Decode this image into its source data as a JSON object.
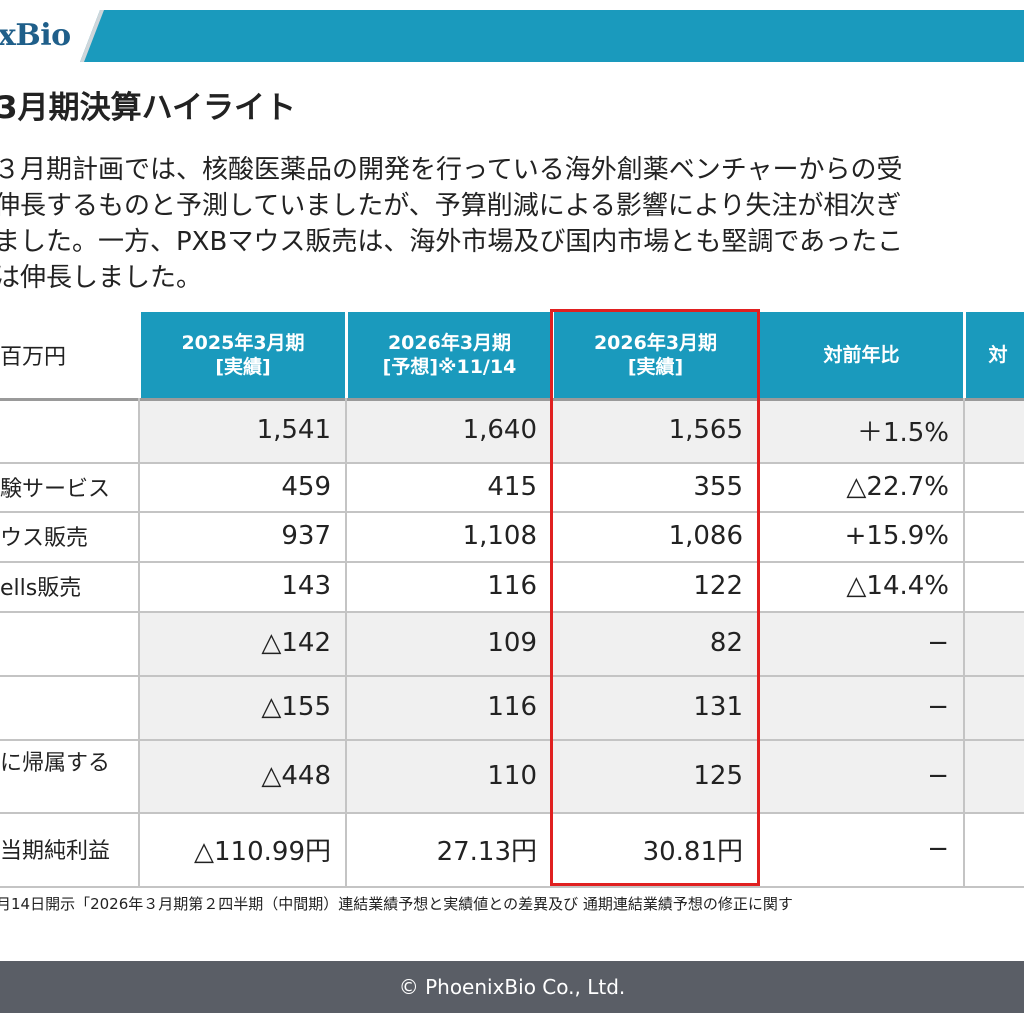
{
  "header": {
    "logo_text": "xBio",
    "accent_color": "#1a9abd"
  },
  "page_title": "3月期決算ハイライト",
  "intro_lines": [
    "３月期計画では、核酸医薬品の開発を行っている海外創薬ベンチャーからの受",
    "伸長するものと予測していましたが、予算削減による影響により失注が相次ぎ",
    "ました。一方、PXBマウス販売は、海外市場及び国内市場とも堅調であったこ",
    "は伸長しました。"
  ],
  "table": {
    "unit_label": "百万円",
    "columns": [
      {
        "line1": "2025年3月期",
        "line2": "[実績]"
      },
      {
        "line1": "2026年3月期",
        "line2": "[予想]※11/14"
      },
      {
        "line1": "2026年3月期",
        "line2": "[実績]"
      },
      {
        "line1": "対前年比",
        "line2": ""
      },
      {
        "line1": "対",
        "line2": ""
      }
    ],
    "highlight_color": "#e02020",
    "rows": [
      {
        "label": "",
        "values": [
          "1,541",
          "1,640",
          "1,565",
          "＋1.5%",
          ""
        ],
        "shaded": true
      },
      {
        "label": "験サービス",
        "values": [
          "459",
          "415",
          "355",
          "△22.7%",
          ""
        ],
        "shaded": false
      },
      {
        "label": "ウス販売",
        "values": [
          "937",
          "1,108",
          "1,086",
          "+15.9%",
          ""
        ],
        "shaded": false
      },
      {
        "label": "ells販売",
        "values": [
          "143",
          "116",
          "122",
          "△14.4%",
          ""
        ],
        "shaded": false
      },
      {
        "label": "",
        "values": [
          "△142",
          "109",
          "82",
          "−",
          ""
        ],
        "shaded": true
      },
      {
        "label": "",
        "values": [
          "△155",
          "116",
          "131",
          "−",
          ""
        ],
        "shaded": true
      },
      {
        "label": "に帰属する",
        "values": [
          "△448",
          "110",
          "125",
          "−",
          ""
        ],
        "shaded": true
      },
      {
        "label": "当期純利益",
        "values": [
          "△110.99円",
          "27.13円",
          "30.81円",
          "−",
          ""
        ],
        "shaded": false
      }
    ]
  },
  "footnote": "月14日開示「2026年３月期第２四半期（中間期）連結業績予想と実績値との差異及び 通期連結業績予想の修正に関す",
  "footer": {
    "copyright": "© PhoenixBio Co., Ltd."
  }
}
